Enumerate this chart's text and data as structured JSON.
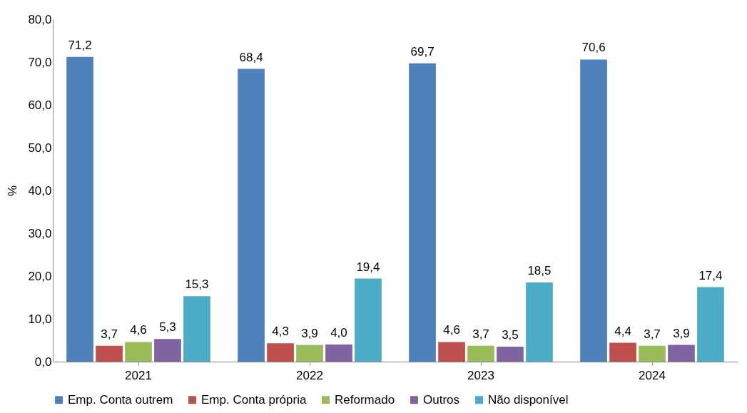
{
  "chart_data": {
    "type": "bar",
    "ylabel": "%",
    "categories": [
      "2021",
      "2022",
      "2023",
      "2024"
    ],
    "series": [
      {
        "name": "Emp. Conta outrem",
        "color": "#4f81bd",
        "values": [
          71.2,
          68.4,
          69.7,
          70.6
        ],
        "value_labels": [
          "71,2",
          "68,4",
          "69,7",
          "70,6"
        ]
      },
      {
        "name": "Emp. Conta própria",
        "color": "#c0504d",
        "values": [
          3.7,
          4.3,
          4.6,
          4.4
        ],
        "value_labels": [
          "3,7",
          "4,3",
          "4,6",
          "4,4"
        ]
      },
      {
        "name": "Reformado",
        "color": "#9bbb59",
        "values": [
          4.6,
          3.9,
          3.7,
          3.7
        ],
        "value_labels": [
          "4,6",
          "3,9",
          "3,7",
          "3,7"
        ]
      },
      {
        "name": "Outros",
        "color": "#8064a2",
        "values": [
          5.3,
          4.0,
          3.5,
          3.9
        ],
        "value_labels": [
          "5,3",
          "4,0",
          "3,5",
          "3,9"
        ]
      },
      {
        "name": "Não disponível",
        "color": "#4bacc6",
        "values": [
          15.3,
          19.4,
          18.5,
          17.4
        ],
        "value_labels": [
          "15,3",
          "19,4",
          "18,5",
          "17,4"
        ]
      }
    ],
    "ylim": [
      0,
      80
    ],
    "yticks": [
      {
        "value": 0,
        "label": "0,0"
      },
      {
        "value": 10,
        "label": "10,0"
      },
      {
        "value": 20,
        "label": "20,0"
      },
      {
        "value": 30,
        "label": "30,0"
      },
      {
        "value": 40,
        "label": "40,0"
      },
      {
        "value": 50,
        "label": "50,0"
      },
      {
        "value": 60,
        "label": "60,0"
      },
      {
        "value": 70,
        "label": "70,0"
      },
      {
        "value": 80,
        "label": "80,0"
      }
    ],
    "grid": false,
    "legend": "bottom"
  }
}
